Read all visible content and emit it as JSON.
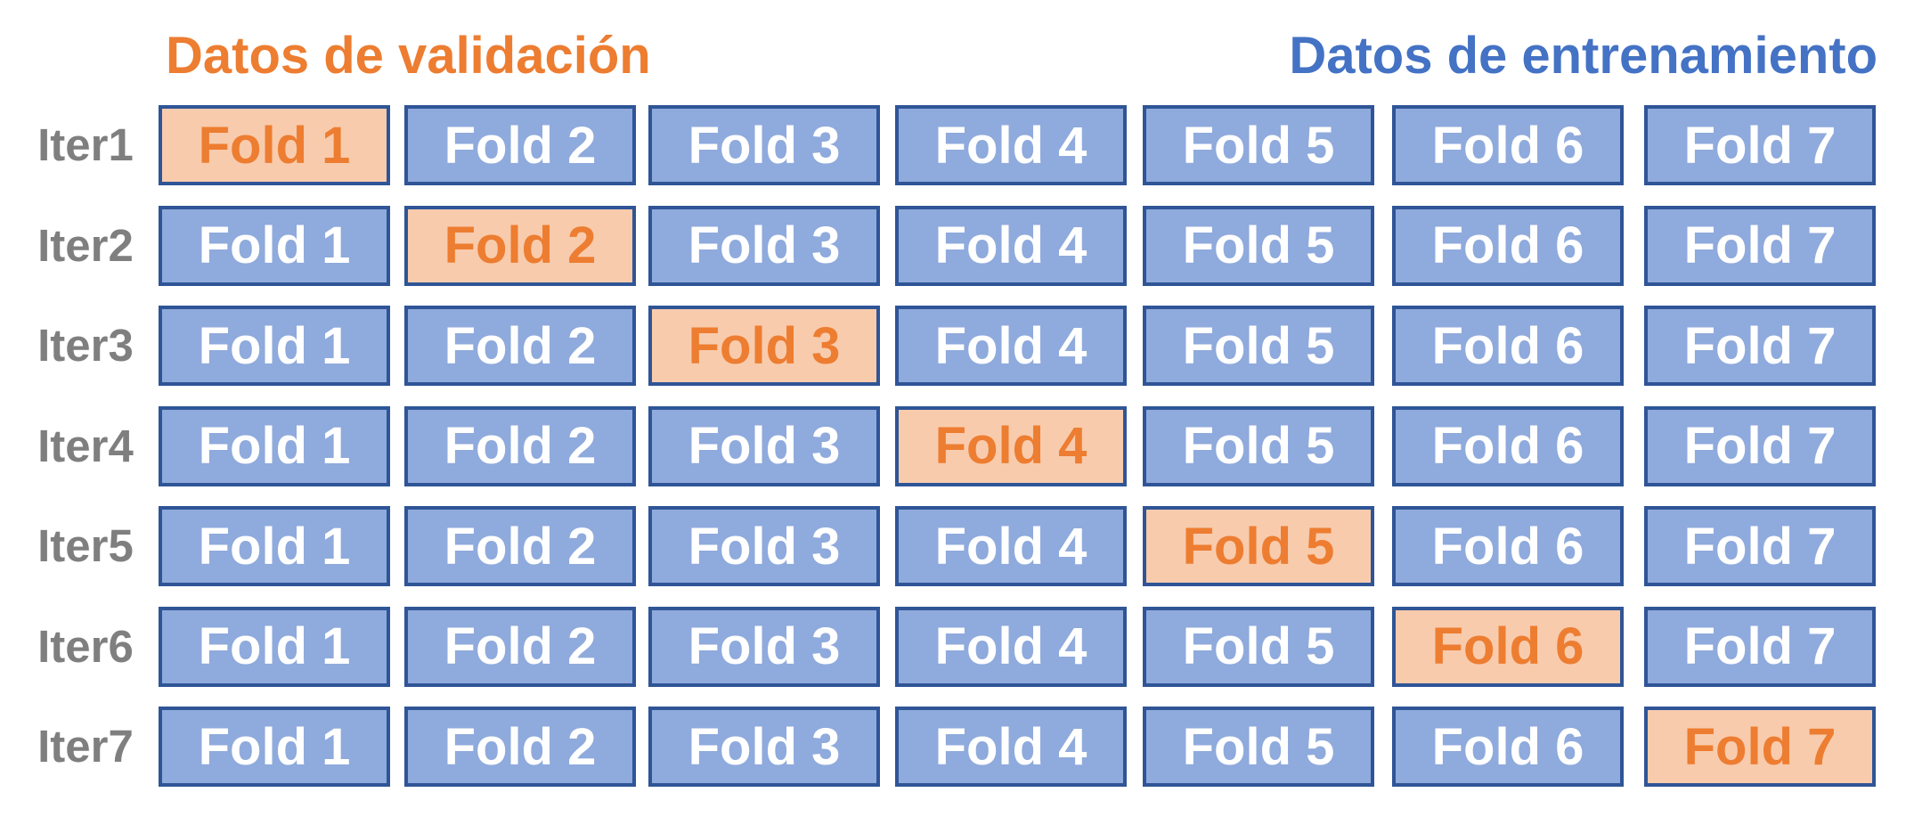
{
  "legend": {
    "validation_label": "Datos de validación",
    "training_label": "Datos de entrenamiento"
  },
  "colors": {
    "validation_text": "#ed7d31",
    "validation_fill": "#f8cbad",
    "training_text": "#4472c4",
    "training_fill": "#8faadc",
    "fold_border": "#2f5597",
    "fold_training_text": "#ffffff",
    "iteration_label": "#7f7f7f"
  },
  "folds": [
    "Fold 1",
    "Fold 2",
    "Fold 3",
    "Fold 4",
    "Fold 5",
    "Fold 6",
    "Fold 7"
  ],
  "iterations": [
    {
      "label": "Iter1",
      "validation_fold": 1
    },
    {
      "label": "Iter2",
      "validation_fold": 2
    },
    {
      "label": "Iter3",
      "validation_fold": 3
    },
    {
      "label": "Iter4",
      "validation_fold": 4
    },
    {
      "label": "Iter5",
      "validation_fold": 5
    },
    {
      "label": "Iter6",
      "validation_fold": 6
    },
    {
      "label": "Iter7",
      "validation_fold": 7
    }
  ]
}
